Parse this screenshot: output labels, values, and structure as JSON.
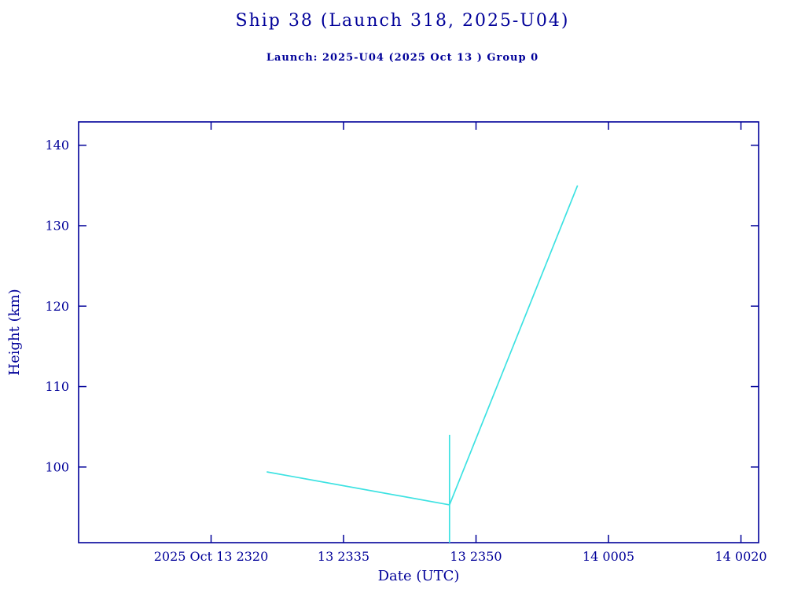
{
  "chart_data": {
    "type": "line",
    "title": "Ship 38 (Launch 318, 2025-U04)",
    "subtitle": "Launch: 2025-U04  (2025 Oct 13 )  Group 0",
    "xlabel": "Date (UTC)",
    "ylabel": "Height (km)",
    "grid": false,
    "legend": null,
    "x_axis": {
      "unit": "minutes after 2025 Oct 13 23:20 UTC",
      "range": [
        -15,
        62
      ],
      "ticks": [
        {
          "value": 0,
          "label": "2025 Oct 13  2320"
        },
        {
          "value": 15,
          "label": "13  2335"
        },
        {
          "value": 30,
          "label": "13  2350"
        },
        {
          "value": 45,
          "label": "14  0005"
        },
        {
          "value": 60,
          "label": "14  0020"
        }
      ]
    },
    "y_axis": {
      "range": [
        90.6,
        142.9
      ],
      "ticks": [
        100,
        110,
        120,
        130,
        140
      ]
    },
    "colors": {
      "axis": "#000099",
      "text": "#000099",
      "line": "#3de2e2",
      "background": "#ffffff"
    },
    "series": [
      {
        "name": "height-track",
        "type": "line",
        "points": [
          [
            6.3,
            99.4
          ],
          [
            27,
            95.3
          ],
          [
            41.5,
            135
          ]
        ]
      },
      {
        "name": "event-vertical-line",
        "type": "line",
        "points": [
          [
            27,
            90.6
          ],
          [
            27,
            104
          ]
        ]
      }
    ]
  }
}
